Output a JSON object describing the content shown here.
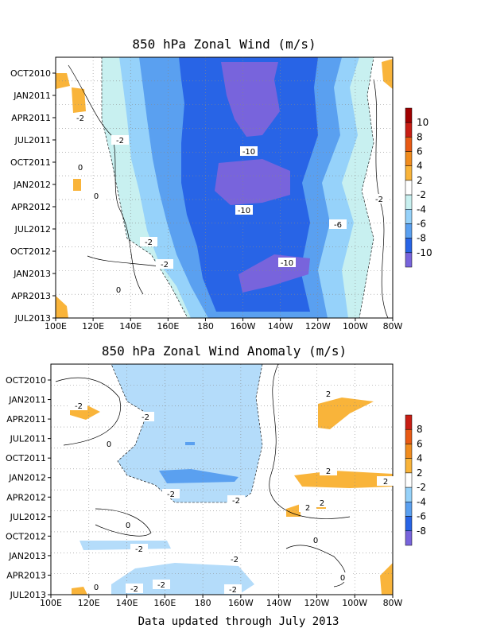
{
  "footer": "Data updated through July 2013",
  "chart_data": [
    {
      "type": "heatmap",
      "title": "850 hPa Zonal Wind (m/s)",
      "x_ticks": [
        "100E",
        "120E",
        "140E",
        "160E",
        "180",
        "160W",
        "140W",
        "120W",
        "100W",
        "80W"
      ],
      "y_ticks": [
        "OCT2010",
        "JAN2011",
        "APR2011",
        "JUL2011",
        "OCT2011",
        "JAN2012",
        "APR2012",
        "JUL2012",
        "OCT2012",
        "JAN2013",
        "APR2013",
        "JUL2013"
      ],
      "colorbar_labels": [
        "10",
        "8",
        "6",
        "4",
        "2",
        "-2",
        "-4",
        "-6",
        "-8",
        "-10"
      ],
      "contour_labels": [
        "-2",
        "-2",
        "0",
        "0",
        "-10",
        "-10",
        "-10",
        "-6",
        "-2",
        "-2",
        "0",
        "-2"
      ],
      "grid": true,
      "colors": {
        "pos2": "#ffffff",
        "pos4": "#f9b43a",
        "pos6": "#f08c1e",
        "pos8": "#e85a14",
        "pos10": "#c81e14",
        "pos_max": "#a00000",
        "neg2": "#ffffff",
        "neg4": "#c8f0f0",
        "neg6": "#96d2fa",
        "neg8": "#5aa0f0",
        "neg10": "#2864e6",
        "neg_max": "#7864dc"
      }
    },
    {
      "type": "heatmap",
      "title": "850 hPa Zonal Wind Anomaly (m/s)",
      "x_ticks": [
        "100E",
        "120E",
        "140E",
        "160E",
        "180",
        "160W",
        "140W",
        "120W",
        "100W",
        "80W"
      ],
      "y_ticks": [
        "OCT2010",
        "JAN2011",
        "APR2011",
        "JUL2011",
        "OCT2011",
        "JAN2012",
        "APR2012",
        "JUL2012",
        "OCT2012",
        "JAN2013",
        "APR2013",
        "JUL2013"
      ],
      "colorbar_labels": [
        "8",
        "6",
        "4",
        "2",
        "-2",
        "-4",
        "-6",
        "-8"
      ],
      "contour_labels": [
        "2",
        "-2",
        "-2",
        "0",
        "2",
        "2",
        "-2",
        "-2",
        "-2",
        "0",
        "0",
        "-2",
        "2",
        "2",
        "-2",
        "0",
        "-2",
        "-2",
        "0"
      ],
      "grid": true
    }
  ]
}
